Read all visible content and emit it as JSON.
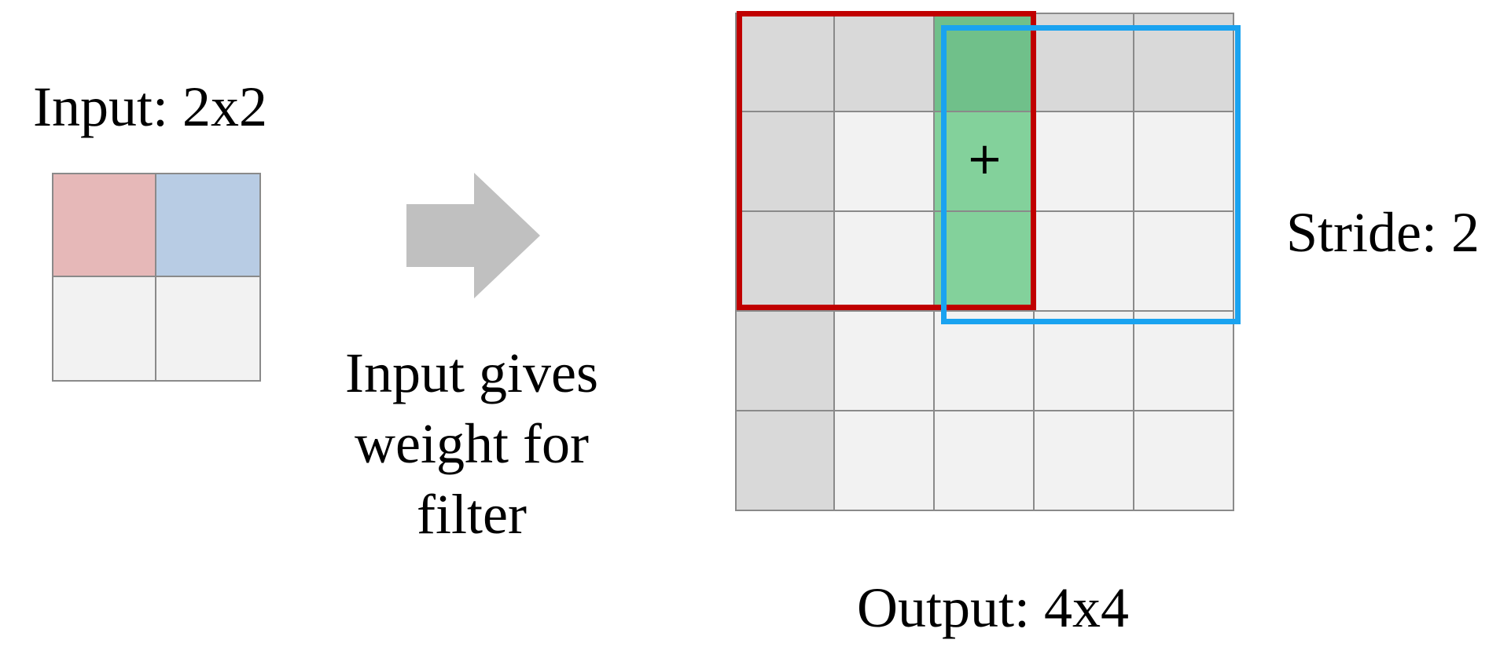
{
  "input": {
    "label": "Input: 2x2",
    "rows": 2,
    "cols": 2,
    "cell_colors": [
      [
        "#e6b8b8",
        "#b8cce4"
      ],
      [
        "#f2f2f2",
        "#f2f2f2"
      ]
    ]
  },
  "arrow": {
    "color": "#c0c0c0",
    "caption": "Input gives weight for filter"
  },
  "output": {
    "label": "Output: 4x4",
    "rows": 5,
    "cols": 5,
    "cell_colors": [
      [
        "#d9d9d9",
        "#d9d9d9",
        "#70c08a",
        "#d9d9d9",
        "#d9d9d9"
      ],
      [
        "#d9d9d9",
        "#f2f2f2",
        "#83d19b",
        "#f2f2f2",
        "#f2f2f2"
      ],
      [
        "#d9d9d9",
        "#f2f2f2",
        "#83d19b",
        "#f2f2f2",
        "#f2f2f2"
      ],
      [
        "#d9d9d9",
        "#f2f2f2",
        "#f2f2f2",
        "#f2f2f2",
        "#f2f2f2"
      ],
      [
        "#d9d9d9",
        "#f2f2f2",
        "#f2f2f2",
        "#f2f2f2",
        "#f2f2f2"
      ]
    ],
    "overlap_symbol": "+"
  },
  "filters": [
    {
      "name": "first-filter-window",
      "color": "#c00000"
    },
    {
      "name": "second-filter-window",
      "color": "#1aa3f0"
    }
  ],
  "stride": {
    "label": "Stride: 2"
  }
}
